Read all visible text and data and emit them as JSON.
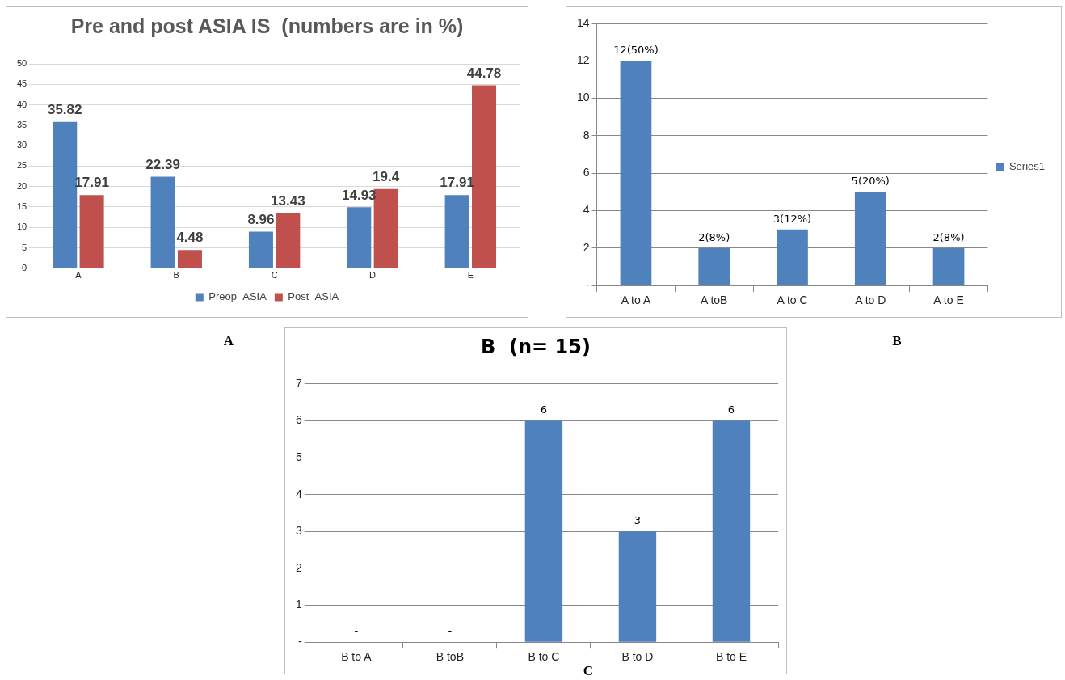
{
  "chart_data": [
    {
      "type": "bar",
      "title": "Pre and post ASIA IS  (numbers are in %)",
      "categories": [
        "A",
        "B",
        "C",
        "D",
        "E"
      ],
      "series": [
        {
          "name": "Preop_ASIA",
          "color": "#4f81bd",
          "values": [
            35.82,
            22.39,
            8.96,
            14.93,
            17.91
          ]
        },
        {
          "name": "Post_ASIA",
          "color": "#c0504d",
          "values": [
            17.91,
            4.48,
            13.43,
            19.4,
            44.78
          ]
        }
      ],
      "ylim": [
        0,
        50
      ],
      "yticks": [
        0,
        5,
        10,
        15,
        20,
        25,
        30,
        35,
        40,
        45,
        50
      ],
      "grid": "y",
      "legend": "bottom",
      "data_labels": true,
      "annotations": [
        "A"
      ]
    },
    {
      "type": "bar",
      "categories": [
        "A to A",
        "A toB",
        "A to C",
        "A to D",
        "A to E"
      ],
      "series": [
        {
          "name": "Series1",
          "color": "#4f81bd",
          "values": [
            12,
            2,
            3,
            5,
            2
          ],
          "value_labels": [
            "12(50%)",
            "2(8%)",
            "3(12%)",
            "5(20%)",
            "2(8%)"
          ]
        }
      ],
      "ylim": [
        0,
        14
      ],
      "yticks": [
        {
          "value": 0,
          "label": "-"
        },
        2,
        4,
        6,
        8,
        10,
        12,
        14
      ],
      "grid": "y",
      "legend": "right",
      "annotations": [
        "B"
      ]
    },
    {
      "type": "bar",
      "title": "B  (n= 15)",
      "categories": [
        "B to A",
        "B toB",
        "B to C",
        "B to D",
        "B to E"
      ],
      "series": [
        {
          "color": "#4f81bd",
          "values": [
            0,
            0,
            6,
            3,
            6
          ],
          "value_labels": [
            "-",
            "-",
            "6",
            "3",
            "6"
          ]
        }
      ],
      "ylim": [
        0,
        7
      ],
      "yticks": [
        {
          "value": 0,
          "label": "-"
        },
        1,
        2,
        3,
        4,
        5,
        6,
        7
      ],
      "grid": "y",
      "annotations": [
        "C"
      ]
    }
  ]
}
